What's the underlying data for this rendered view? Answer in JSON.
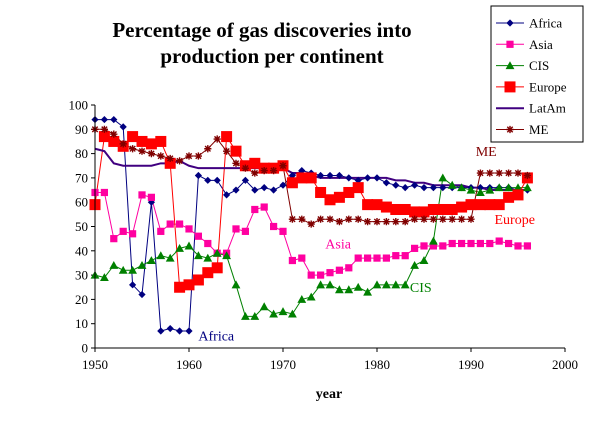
{
  "chart_data": {
    "type": "line",
    "title": "Percentage of gas discoveries into production per continent",
    "title_lines": [
      "Percentage of gas discoveries into",
      "production per continent"
    ],
    "xlabel": "year",
    "ylabel": "",
    "xlim": [
      1950,
      2000
    ],
    "ylim": [
      0,
      100
    ],
    "x_ticks": [
      1950,
      1960,
      1970,
      1980,
      1990,
      2000
    ],
    "y_ticks": [
      0,
      10,
      20,
      30,
      40,
      50,
      60,
      70,
      80,
      90,
      100
    ],
    "grid": false,
    "legend_position": "top-right",
    "series": [
      {
        "name": "Africa",
        "color": "#000080",
        "marker": "diamond",
        "x": [
          1950,
          1951,
          1952,
          1953,
          1954,
          1955,
          1956,
          1957,
          1958,
          1959,
          1960,
          1961,
          1962,
          1963,
          1964,
          1965,
          1966,
          1967,
          1968,
          1969,
          1970,
          1971,
          1972,
          1973,
          1974,
          1975,
          1976,
          1977,
          1978,
          1979,
          1980,
          1981,
          1982,
          1983,
          1984,
          1985,
          1986,
          1987,
          1988,
          1989,
          1990,
          1991,
          1992,
          1993,
          1994,
          1995,
          1996
        ],
        "y": [
          94,
          94,
          94,
          91,
          26,
          22,
          60,
          7,
          8,
          7,
          7,
          71,
          69,
          69,
          63,
          65,
          69,
          65,
          66,
          65,
          67,
          71,
          73,
          72,
          71,
          71,
          71,
          70,
          69,
          70,
          70,
          68,
          67,
          66,
          67,
          66,
          66,
          66,
          66,
          66,
          66,
          66,
          66,
          66,
          66,
          65,
          65
        ]
      },
      {
        "name": "Asia",
        "color": "#FF00A0",
        "marker": "square",
        "x": [
          1950,
          1951,
          1952,
          1953,
          1954,
          1955,
          1956,
          1957,
          1958,
          1959,
          1960,
          1961,
          1962,
          1963,
          1964,
          1965,
          1966,
          1967,
          1968,
          1969,
          1970,
          1971,
          1972,
          1973,
          1974,
          1975,
          1976,
          1977,
          1978,
          1979,
          1980,
          1981,
          1982,
          1983,
          1984,
          1985,
          1986,
          1987,
          1988,
          1989,
          1990,
          1991,
          1992,
          1993,
          1994,
          1995,
          1996
        ],
        "y": [
          64,
          64,
          45,
          48,
          47,
          63,
          62,
          48,
          51,
          51,
          49,
          46,
          43,
          39,
          39,
          49,
          48,
          57,
          58,
          50,
          48,
          36,
          37,
          30,
          30,
          31,
          32,
          33,
          37,
          37,
          37,
          37,
          38,
          38,
          41,
          42,
          42,
          42,
          43,
          43,
          43,
          43,
          43,
          44,
          43,
          42,
          42
        ]
      },
      {
        "name": "CIS",
        "color": "#008000",
        "marker": "triangle",
        "x": [
          1950,
          1951,
          1952,
          1953,
          1954,
          1955,
          1956,
          1957,
          1958,
          1959,
          1960,
          1961,
          1962,
          1963,
          1964,
          1965,
          1966,
          1967,
          1968,
          1969,
          1970,
          1971,
          1972,
          1973,
          1974,
          1975,
          1976,
          1977,
          1978,
          1979,
          1980,
          1981,
          1982,
          1983,
          1984,
          1985,
          1986,
          1987,
          1988,
          1989,
          1990,
          1991,
          1992,
          1993,
          1994,
          1995,
          1996
        ],
        "y": [
          30,
          29,
          34,
          32,
          32,
          34,
          36,
          38,
          37,
          41,
          42,
          38,
          37,
          39,
          38,
          26,
          13,
          13,
          17,
          14,
          15,
          14,
          20,
          21,
          26,
          26,
          24,
          24,
          25,
          23,
          26,
          26,
          26,
          26,
          34,
          36,
          44,
          70,
          67,
          66,
          65,
          64,
          65,
          66,
          66,
          66,
          66
        ]
      },
      {
        "name": "Europe",
        "color": "#FF0000",
        "marker": "square-large",
        "x": [
          1950,
          1951,
          1952,
          1953,
          1954,
          1955,
          1956,
          1957,
          1958,
          1959,
          1960,
          1961,
          1962,
          1963,
          1964,
          1965,
          1966,
          1967,
          1968,
          1969,
          1970,
          1971,
          1972,
          1973,
          1974,
          1975,
          1976,
          1977,
          1978,
          1979,
          1980,
          1981,
          1982,
          1983,
          1984,
          1985,
          1986,
          1987,
          1988,
          1989,
          1990,
          1991,
          1992,
          1993,
          1994,
          1995,
          1996
        ],
        "y": [
          59,
          87,
          85,
          83,
          87,
          85,
          84,
          85,
          76,
          25,
          26,
          28,
          31,
          33,
          87,
          81,
          75,
          76,
          74,
          74,
          75,
          68,
          70,
          70,
          64,
          61,
          62,
          64,
          66,
          59,
          59,
          58,
          57,
          57,
          56,
          56,
          57,
          57,
          57,
          58,
          59,
          59,
          59,
          59,
          62,
          63,
          70
        ]
      },
      {
        "name": "LatAm",
        "color": "#400080",
        "marker": "none",
        "x": [
          1950,
          1951,
          1952,
          1953,
          1954,
          1955,
          1956,
          1957,
          1958,
          1959,
          1960,
          1961,
          1962,
          1963,
          1964,
          1965,
          1966,
          1967,
          1968,
          1969,
          1970,
          1971,
          1972,
          1973,
          1974,
          1975,
          1976,
          1977,
          1978,
          1979,
          1980,
          1981,
          1982,
          1983,
          1984,
          1985,
          1986,
          1987,
          1988,
          1989,
          1990,
          1991,
          1992,
          1993,
          1994,
          1995,
          1996
        ],
        "y": [
          82,
          81,
          76,
          75,
          75,
          75,
          75,
          76,
          76,
          77,
          75,
          74,
          74,
          74,
          74,
          74,
          74,
          74,
          74,
          74,
          74,
          72,
          72,
          71,
          70,
          70,
          70,
          70,
          70,
          70,
          70,
          70,
          69,
          69,
          68,
          68,
          67,
          67,
          67,
          67,
          66,
          66,
          65,
          65,
          65,
          65,
          65
        ]
      },
      {
        "name": "ME",
        "color": "#800000",
        "marker": "star",
        "x": [
          1950,
          1951,
          1952,
          1953,
          1954,
          1955,
          1956,
          1957,
          1958,
          1959,
          1960,
          1961,
          1962,
          1963,
          1964,
          1965,
          1966,
          1967,
          1968,
          1969,
          1970,
          1971,
          1972,
          1973,
          1974,
          1975,
          1976,
          1977,
          1978,
          1979,
          1980,
          1981,
          1982,
          1983,
          1984,
          1985,
          1986,
          1987,
          1988,
          1989,
          1990,
          1991,
          1992,
          1993,
          1994,
          1995,
          1996
        ],
        "y": [
          90,
          90,
          88,
          84,
          82,
          81,
          80,
          79,
          78,
          77,
          79,
          79,
          82,
          86,
          81,
          76,
          74,
          72,
          73,
          73,
          75,
          53,
          53,
          51,
          53,
          53,
          52,
          53,
          53,
          52,
          52,
          52,
          52,
          52,
          53,
          53,
          53,
          53,
          53,
          53,
          53,
          72,
          72,
          72,
          72,
          72,
          71
        ]
      }
    ],
    "annotations": [
      {
        "text": "ME",
        "x": 1990.5,
        "y": 79,
        "color": "#800000"
      },
      {
        "text": "Europe",
        "x": 1992.5,
        "y": 51,
        "color": "#FF0000"
      },
      {
        "text": "Asia",
        "x": 1974.5,
        "y": 41,
        "color": "#FF00A0"
      },
      {
        "text": "CIS",
        "x": 1983.5,
        "y": 23,
        "color": "#008000"
      },
      {
        "text": "Africa",
        "x": 1961,
        "y": 3,
        "color": "#000080"
      }
    ]
  }
}
